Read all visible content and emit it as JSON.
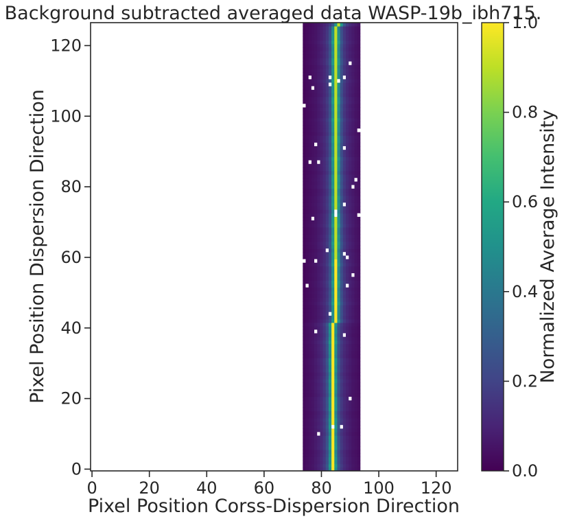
{
  "chart_data": {
    "type": "heatmap",
    "title": "Background subtracted averaged data WASP-19b_ibh715.",
    "xlabel": "Pixel Position Corss-Dispersion Direction",
    "ylabel": "Pixel Position Dispersion Direction",
    "xlim": [
      -0.5,
      127.5
    ],
    "ylim": [
      -0.5,
      126.5
    ],
    "x_ticks": [
      0,
      20,
      40,
      60,
      80,
      100,
      120
    ],
    "y_ticks": [
      0,
      20,
      40,
      60,
      80,
      100,
      120
    ],
    "colorbar": {
      "label": "Normalized Average Intensity",
      "colormap": "viridis",
      "range": [
        0.0,
        1.0
      ],
      "ticks": [
        "0.0",
        "0.2",
        "0.4",
        "0.6",
        "0.8",
        "1.0"
      ]
    },
    "data_columns": [
      74,
      93
    ],
    "data_rows": [
      0,
      126
    ],
    "trace": {
      "center_column_at_row0": 84.0,
      "center_column_at_row126": 85.5,
      "column_profile": [
        {
          "offset": -10,
          "value": 0.03
        },
        {
          "offset": -9,
          "value": 0.04
        },
        {
          "offset": -8,
          "value": 0.05
        },
        {
          "offset": -7,
          "value": 0.06
        },
        {
          "offset": -6,
          "value": 0.08
        },
        {
          "offset": -5,
          "value": 0.1
        },
        {
          "offset": -4,
          "value": 0.13
        },
        {
          "offset": -3,
          "value": 0.18
        },
        {
          "offset": -2,
          "value": 0.28
        },
        {
          "offset": -1,
          "value": 0.55
        },
        {
          "offset": 0,
          "value": 1.0
        },
        {
          "offset": 1,
          "value": 0.55
        },
        {
          "offset": 2,
          "value": 0.28
        },
        {
          "offset": 3,
          "value": 0.18
        },
        {
          "offset": 4,
          "value": 0.13
        },
        {
          "offset": 5,
          "value": 0.1
        },
        {
          "offset": 6,
          "value": 0.08
        },
        {
          "offset": 7,
          "value": 0.06
        },
        {
          "offset": 8,
          "value": 0.05
        },
        {
          "offset": 9,
          "value": 0.04
        }
      ]
    },
    "masked_pixels": [
      [
        76,
        111
      ],
      [
        83,
        111
      ],
      [
        88,
        111
      ],
      [
        86,
        110
      ],
      [
        77,
        108
      ],
      [
        83,
        109
      ],
      [
        90,
        115
      ],
      [
        74,
        103
      ],
      [
        93,
        96
      ],
      [
        78,
        92
      ],
      [
        88,
        91
      ],
      [
        76,
        87
      ],
      [
        79,
        87
      ],
      [
        92,
        82
      ],
      [
        91,
        80
      ],
      [
        88,
        75
      ],
      [
        85,
        73
      ],
      [
        85,
        72
      ],
      [
        93,
        72
      ],
      [
        77,
        71
      ],
      [
        82,
        62
      ],
      [
        88,
        61
      ],
      [
        89,
        60
      ],
      [
        74,
        59
      ],
      [
        78,
        59
      ],
      [
        91,
        55
      ],
      [
        75,
        52
      ],
      [
        89,
        52
      ],
      [
        83,
        44
      ],
      [
        78,
        39
      ],
      [
        88,
        38
      ],
      [
        90,
        20
      ],
      [
        84,
        12
      ],
      [
        87,
        12
      ],
      [
        79,
        10
      ]
    ]
  }
}
